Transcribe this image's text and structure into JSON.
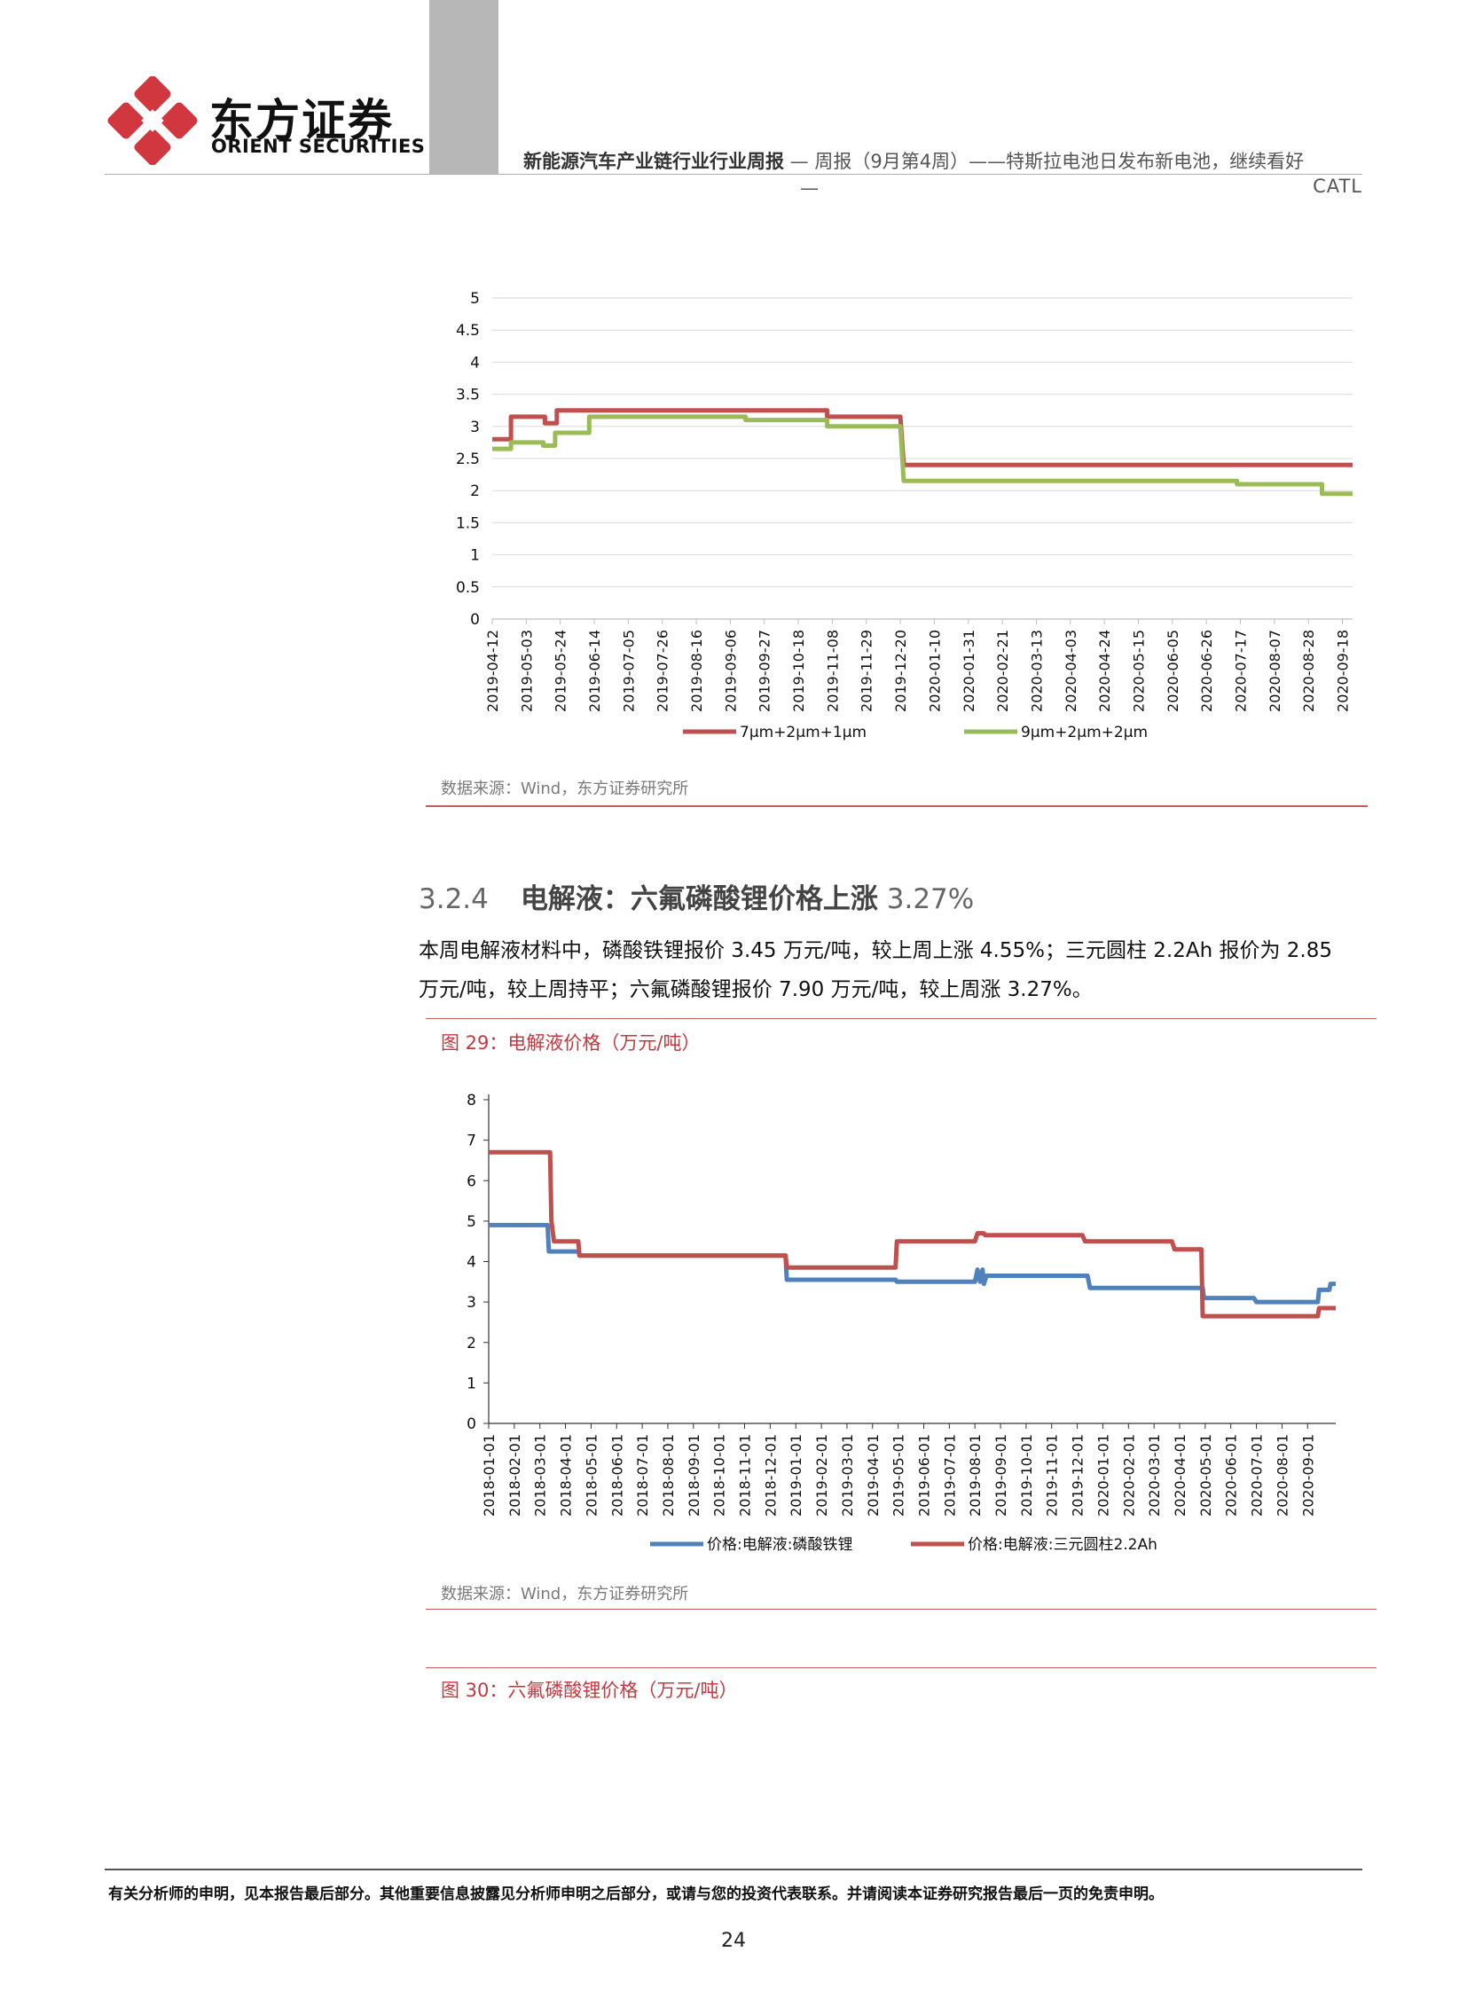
{
  "header": {
    "logo_cn": "东方证券",
    "logo_en": "ORIENT SECURITIES",
    "title_bold": "新能源汽车产业链行业行业周报",
    "title_rest": " — 周报（9月第4周）——特斯拉电池日发布新电池，继续看好",
    "dash": "—",
    "line2": "CATL",
    "colors": {
      "logo_red": "#d1373e",
      "rule_red": "#c8595d",
      "gray_bar": "#b7b7b7"
    }
  },
  "chart_data": [
    {
      "type": "line",
      "title": "",
      "ylim": [
        0,
        5
      ],
      "yticks": [
        "0",
        "0.5",
        "1",
        "1.5",
        "2",
        "2.5",
        "3",
        "3.5",
        "4",
        "4.5",
        "5"
      ],
      "grid": true,
      "legend_position": "bottom",
      "categories": [
        "2019-04-12",
        "2019-05-03",
        "2019-05-24",
        "2019-06-14",
        "2019-07-05",
        "2019-07-26",
        "2019-08-16",
        "2019-09-06",
        "2019-09-27",
        "2019-10-18",
        "2019-11-08",
        "2019-11-29",
        "2019-12-20",
        "2020-01-10",
        "2020-01-31",
        "2020-02-21",
        "2020-03-13",
        "2020-04-03",
        "2020-04-24",
        "2020-05-15",
        "2020-06-05",
        "2020-06-26",
        "2020-07-17",
        "2020-08-07",
        "2020-08-28",
        "2020-09-18"
      ],
      "x_range": [
        0,
        25.3
      ],
      "series": [
        {
          "name": "7μm+2μm+1μm",
          "color": "#c0504d",
          "points": [
            [
              0,
              2.8
            ],
            [
              0.55,
              2.8
            ],
            [
              0.55,
              3.15
            ],
            [
              1.55,
              3.15
            ],
            [
              1.55,
              3.05
            ],
            [
              1.9,
              3.05
            ],
            [
              1.9,
              3.25
            ],
            [
              9.85,
              3.25
            ],
            [
              9.85,
              3.15
            ],
            [
              12,
              3.15
            ],
            [
              12.1,
              2.4
            ],
            [
              25.3,
              2.4
            ]
          ]
        },
        {
          "name": "9μm+2μm+2μm",
          "color": "#9bbb59",
          "points": [
            [
              0,
              2.65
            ],
            [
              0.55,
              2.65
            ],
            [
              0.55,
              2.75
            ],
            [
              1.5,
              2.75
            ],
            [
              1.5,
              2.7
            ],
            [
              1.85,
              2.7
            ],
            [
              1.85,
              2.9
            ],
            [
              2.85,
              2.9
            ],
            [
              2.85,
              3.15
            ],
            [
              7.45,
              3.15
            ],
            [
              7.45,
              3.1
            ],
            [
              9.85,
              3.1
            ],
            [
              9.85,
              3.0
            ],
            [
              12,
              3.0
            ],
            [
              12.1,
              2.15
            ],
            [
              21.9,
              2.15
            ],
            [
              21.9,
              2.1
            ],
            [
              24.4,
              2.1
            ],
            [
              24.4,
              1.95
            ],
            [
              25.3,
              1.95
            ]
          ]
        }
      ]
    },
    {
      "type": "line",
      "title": "",
      "ylim": [
        0,
        8
      ],
      "yticks": [
        "0",
        "1",
        "2",
        "3",
        "4",
        "5",
        "6",
        "7",
        "8"
      ],
      "grid": false,
      "legend_position": "bottom",
      "categories": [
        "2018-01-01",
        "2018-02-01",
        "2018-03-01",
        "2018-04-01",
        "2018-05-01",
        "2018-06-01",
        "2018-07-01",
        "2018-08-01",
        "2018-09-01",
        "2018-10-01",
        "2018-11-01",
        "2018-12-01",
        "2019-01-01",
        "2019-02-01",
        "2019-03-01",
        "2019-04-01",
        "2019-05-01",
        "2019-06-01",
        "2019-07-01",
        "2019-08-01",
        "2019-09-01",
        "2019-10-01",
        "2019-11-01",
        "2019-12-01",
        "2020-01-01",
        "2020-02-01",
        "2020-03-01",
        "2020-04-01",
        "2020-05-01",
        "2020-06-01",
        "2020-07-01",
        "2020-08-01",
        "2020-09-01"
      ],
      "x_range": [
        0,
        33.1
      ],
      "series": [
        {
          "name": "价格:电解液:磷酸铁锂",
          "color": "#4f81bd",
          "points": [
            [
              0,
              4.9
            ],
            [
              2.3,
              4.9
            ],
            [
              2.35,
              4.25
            ],
            [
              3.5,
              4.25
            ],
            [
              3.55,
              4.15
            ],
            [
              11.6,
              4.15
            ],
            [
              11.65,
              3.55
            ],
            [
              15.9,
              3.55
            ],
            [
              15.95,
              3.5
            ],
            [
              19.0,
              3.5
            ],
            [
              19.1,
              3.8
            ],
            [
              19.2,
              3.5
            ],
            [
              19.3,
              3.8
            ],
            [
              19.35,
              3.45
            ],
            [
              19.45,
              3.65
            ],
            [
              23.4,
              3.65
            ],
            [
              23.5,
              3.35
            ],
            [
              27.9,
              3.35
            ],
            [
              27.95,
              3.1
            ],
            [
              29.9,
              3.1
            ],
            [
              30.0,
              3.0
            ],
            [
              32.4,
              3.0
            ],
            [
              32.45,
              3.3
            ],
            [
              32.85,
              3.3
            ],
            [
              32.9,
              3.45
            ],
            [
              33.1,
              3.45
            ]
          ]
        },
        {
          "name": "价格:电解液:三元圆柱2.2Ah",
          "color": "#c0504d",
          "points": [
            [
              0,
              6.7
            ],
            [
              2.4,
              6.7
            ],
            [
              2.45,
              5.0
            ],
            [
              2.55,
              4.5
            ],
            [
              3.5,
              4.5
            ],
            [
              3.55,
              4.15
            ],
            [
              11.6,
              4.15
            ],
            [
              11.65,
              3.85
            ],
            [
              15.9,
              3.85
            ],
            [
              15.95,
              4.5
            ],
            [
              19.0,
              4.5
            ],
            [
              19.1,
              4.7
            ],
            [
              19.35,
              4.7
            ],
            [
              19.4,
              4.65
            ],
            [
              23.2,
              4.65
            ],
            [
              23.3,
              4.5
            ],
            [
              26.7,
              4.5
            ],
            [
              26.8,
              4.3
            ],
            [
              27.85,
              4.3
            ],
            [
              27.9,
              2.65
            ],
            [
              32.4,
              2.65
            ],
            [
              32.45,
              2.85
            ],
            [
              33.1,
              2.85
            ]
          ]
        }
      ]
    }
  ],
  "source1": "数据来源：Wind，东方证券研究所",
  "section": {
    "number": "3.2.4",
    "title": "电解液：六氟磷酸锂价格上涨",
    "suffix": " 3.27%"
  },
  "paragraph": {
    "line1": "本周电解液材料中，磷酸铁锂报价 3.45 万元/吨，较上周上涨 4.55%；三元圆柱 2.2Ah 报价为 2.85",
    "line2": "万元/吨，较上周持平；六氟磷酸锂报价 7.90 万元/吨，较上周涨 3.27%。"
  },
  "fig29_title": "图 29：电解液价格（万元/吨）",
  "source2": "数据来源：Wind，东方证券研究所",
  "fig30_title": "图 30：六氟磷酸锂价格（万元/吨）",
  "footer": {
    "note": "有关分析师的申明，见本报告最后部分。其他重要信息披露见分析师申明之后部分，或请与您的投资代表联系。并请阅读本证券研究报告最后一页的免责申明。",
    "page": "24"
  }
}
